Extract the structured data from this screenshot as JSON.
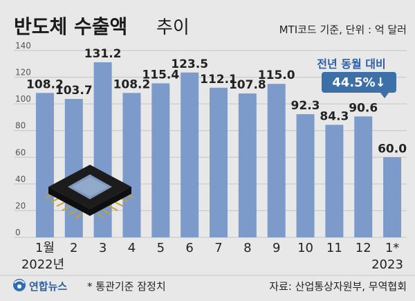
{
  "title": {
    "main": "반도체 수출액",
    "sub": "추이"
  },
  "unit_note": "MTI코드 기준, 단위 : 억 달러",
  "callout": {
    "label": "전년 동월 대비",
    "value": "44.5%↓"
  },
  "footer": {
    "logo_text": "연합뉴스",
    "note": "* 통관기준 잠정치",
    "source": "자료: 산업통상자원부, 무역협회"
  },
  "colors": {
    "bar": "#7c9bcb",
    "background": "#e8e8e8",
    "callout_bg": "#3d6fa8",
    "callout_text": "#2d5fa0",
    "text": "#222222"
  },
  "chart_data": {
    "type": "bar",
    "categories": [
      "1월",
      "2",
      "3",
      "4",
      "5",
      "6",
      "7",
      "8",
      "9",
      "10",
      "11",
      "12",
      "1*"
    ],
    "year_labels": [
      "2022년",
      "2023"
    ],
    "values": [
      108.2,
      103.7,
      131.2,
      108.2,
      115.4,
      123.5,
      112.1,
      107.8,
      115.0,
      92.3,
      84.3,
      90.6,
      60.0
    ],
    "value_labels": [
      "108.2",
      "103.7",
      "131.2",
      "108.2",
      "115.4",
      "123.5",
      "112.1",
      "107.8",
      "115.0",
      "92.3",
      "84.3",
      "90.6",
      "60.0"
    ],
    "yticks": [
      0,
      20,
      40,
      60,
      80,
      100,
      120,
      140
    ],
    "ylim": [
      0,
      140
    ],
    "grid": true
  }
}
